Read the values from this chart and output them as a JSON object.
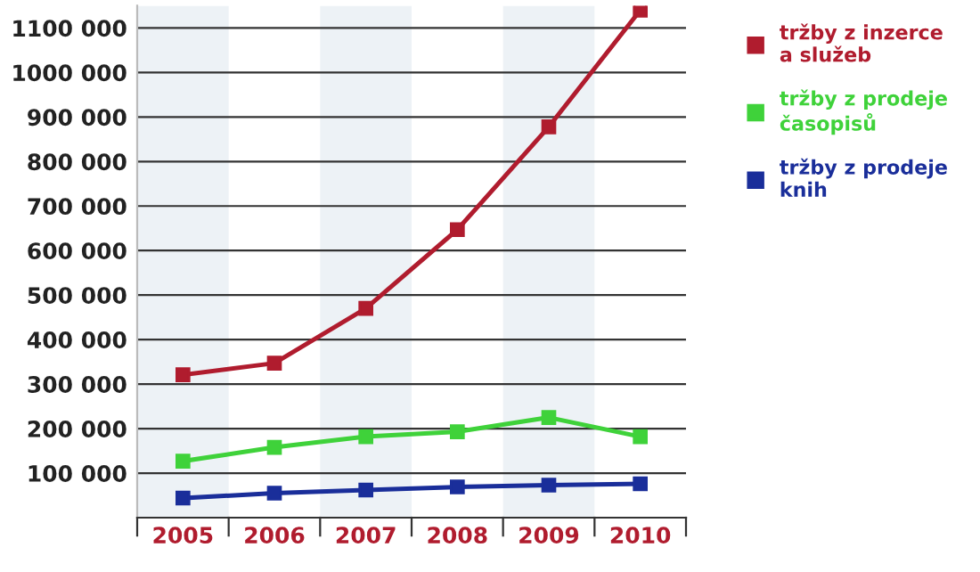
{
  "chart_data": {
    "type": "line",
    "categories": [
      "2005",
      "2006",
      "2007",
      "2008",
      "2009",
      "2010"
    ],
    "series": [
      {
        "name": "tržby z inzerce a služeb",
        "color": "#b01c2e",
        "values": [
          321000,
          347000,
          470000,
          647000,
          878000,
          1140000
        ]
      },
      {
        "name": "tržby z prodeje časopisů",
        "color": "#3fd23a",
        "values": [
          127000,
          158000,
          182000,
          193000,
          225000,
          182000
        ]
      },
      {
        "name": "tržby z prodeje knih",
        "color": "#1a2e9a",
        "values": [
          44000,
          55000,
          62000,
          69000,
          73000,
          76000
        ]
      }
    ],
    "ylim": [
      0,
      1150000
    ],
    "yticks": [
      {
        "value": 100000,
        "label": "100 000"
      },
      {
        "value": 200000,
        "label": "200 000"
      },
      {
        "value": 300000,
        "label": "300 000"
      },
      {
        "value": 400000,
        "label": "400 000"
      },
      {
        "value": 500000,
        "label": "500 000"
      },
      {
        "value": 600000,
        "label": "600 000"
      },
      {
        "value": 700000,
        "label": "700 000"
      },
      {
        "value": 800000,
        "label": "800 000"
      },
      {
        "value": 900000,
        "label": "900 000"
      },
      {
        "value": 1000000,
        "label": "1000 000"
      },
      {
        "value": 1100000,
        "label": "1100 000"
      }
    ],
    "bands": [
      {
        "axis": "x",
        "from": "2005",
        "to": "2005",
        "color": "#edf2f6"
      },
      {
        "axis": "x",
        "from": "2007",
        "to": "2007",
        "color": "#edf2f6"
      },
      {
        "axis": "x",
        "from": "2009",
        "to": "2009",
        "color": "#edf2f6"
      }
    ],
    "grid": "y",
    "legend": "top right",
    "marker": "square",
    "line_style": "solid"
  }
}
